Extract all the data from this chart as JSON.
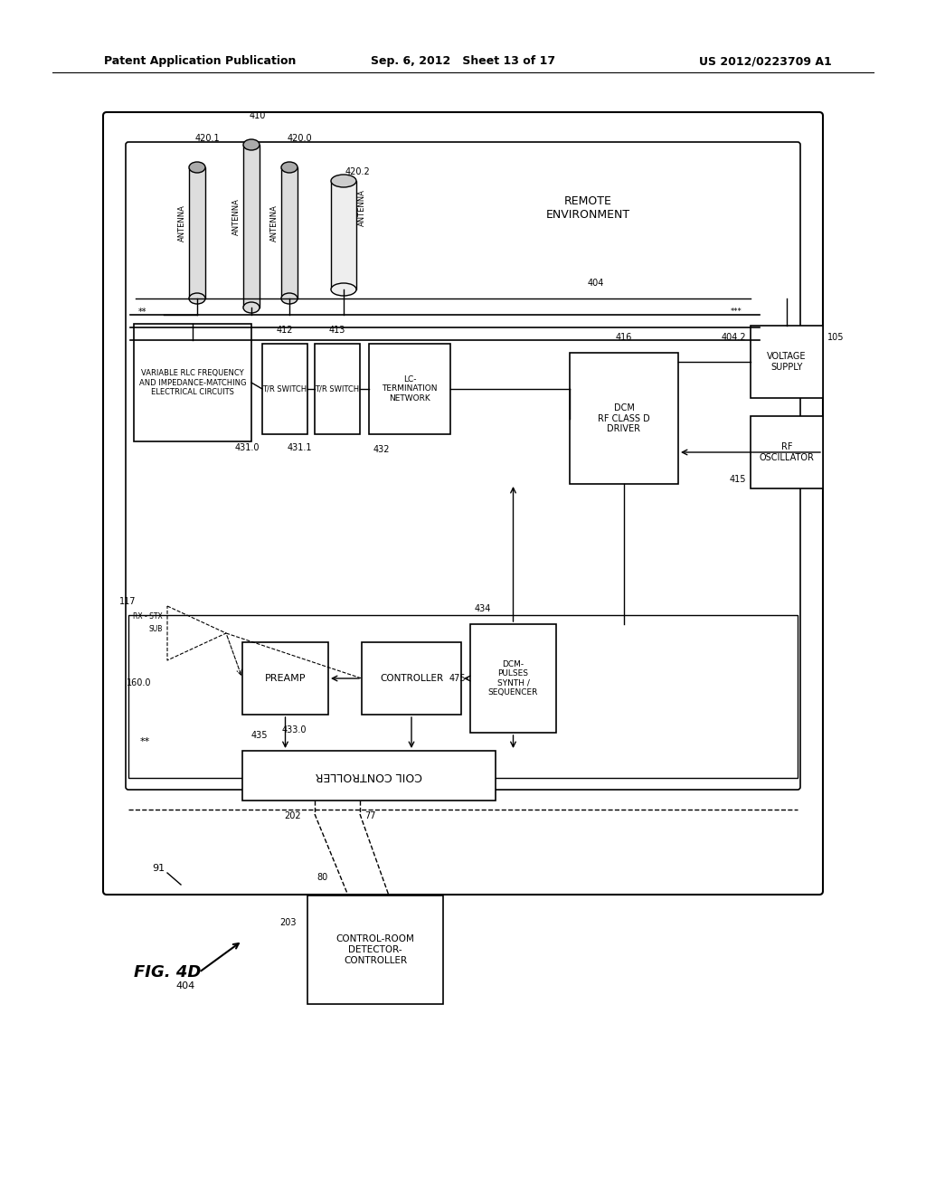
{
  "page_header_left": "Patent Application Publication",
  "page_header_center": "Sep. 6, 2012   Sheet 13 of 17",
  "page_header_right": "US 2012/0223709 A1",
  "bg_color": "#ffffff"
}
